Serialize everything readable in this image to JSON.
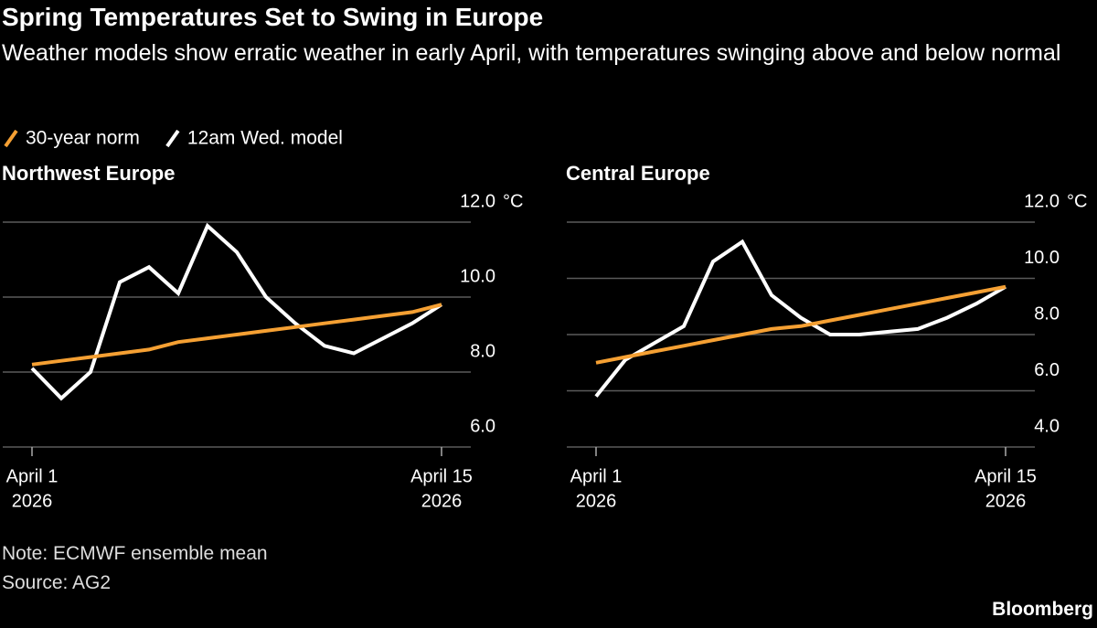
{
  "title": "Spring Temperatures Set to Swing in Europe",
  "subtitle": "Weather models show erratic weather in early April, with temperatures swinging above and below normal",
  "note": "Note: ECMWF ensemble mean",
  "source": "Source: AG2",
  "brand": "Bloomberg",
  "chart_data": [
    {
      "type": "line",
      "title": "Northwest Europe",
      "y_unit": "°C",
      "x": [
        "2026-04-01",
        "2026-04-02",
        "2026-04-03",
        "2026-04-04",
        "2026-04-05",
        "2026-04-06",
        "2026-04-07",
        "2026-04-08",
        "2026-04-09",
        "2026-04-10",
        "2026-04-11",
        "2026-04-12",
        "2026-04-13",
        "2026-04-14",
        "2026-04-15"
      ],
      "xlim": [
        "2026-03-31",
        "2026-04-16"
      ],
      "xticks": [
        {
          "value": "2026-04-01",
          "label": [
            "April 1",
            "2026"
          ]
        },
        {
          "value": "2026-04-15",
          "label": [
            "April 15",
            "2026"
          ]
        }
      ],
      "ylim": [
        6,
        12
      ],
      "yticks": [
        {
          "value": 6,
          "label": "6.0"
        },
        {
          "value": 8,
          "label": "8.0"
        },
        {
          "value": 10,
          "label": "10.0"
        },
        {
          "value": 12,
          "label": "12.0"
        }
      ],
      "grid": true,
      "series": [
        {
          "name": "30-year norm",
          "color": "#f5a033",
          "values": [
            8.2,
            8.3,
            8.4,
            8.5,
            8.6,
            8.8,
            8.9,
            9.0,
            9.1,
            9.2,
            9.3,
            9.4,
            9.5,
            9.6,
            9.8
          ]
        },
        {
          "name": "12am Wed. model",
          "color": "#ffffff",
          "values": [
            8.1,
            7.3,
            8.0,
            10.4,
            10.8,
            10.1,
            11.9,
            11.2,
            10.0,
            9.3,
            8.7,
            8.5,
            8.9,
            9.3,
            9.8
          ]
        }
      ]
    },
    {
      "type": "line",
      "title": "Central Europe",
      "y_unit": "°C",
      "x": [
        "2026-04-01",
        "2026-04-02",
        "2026-04-03",
        "2026-04-04",
        "2026-04-05",
        "2026-04-06",
        "2026-04-07",
        "2026-04-08",
        "2026-04-09",
        "2026-04-10",
        "2026-04-11",
        "2026-04-12",
        "2026-04-13",
        "2026-04-14",
        "2026-04-15"
      ],
      "xlim": [
        "2026-03-31",
        "2026-04-16"
      ],
      "xticks": [
        {
          "value": "2026-04-01",
          "label": [
            "April 1",
            "2026"
          ]
        },
        {
          "value": "2026-04-15",
          "label": [
            "April 15",
            "2026"
          ]
        }
      ],
      "ylim": [
        4,
        12
      ],
      "yticks": [
        {
          "value": 4,
          "label": "4.0"
        },
        {
          "value": 6,
          "label": "6.0"
        },
        {
          "value": 8,
          "label": "8.0"
        },
        {
          "value": 10,
          "label": "10.0"
        },
        {
          "value": 12,
          "label": "12.0"
        }
      ],
      "grid": true,
      "series": [
        {
          "color": "#f5a033",
          "values": [
            7.0,
            7.2,
            7.4,
            7.6,
            7.8,
            8.0,
            8.2,
            8.3,
            8.5,
            8.7,
            8.9,
            9.1,
            9.3,
            9.5,
            9.7
          ]
        },
        {
          "color": "#ffffff",
          "values": [
            5.8,
            7.1,
            7.7,
            8.3,
            10.6,
            11.3,
            9.4,
            8.6,
            8.0,
            8.0,
            8.1,
            8.2,
            8.6,
            9.1,
            9.7
          ]
        }
      ]
    }
  ]
}
